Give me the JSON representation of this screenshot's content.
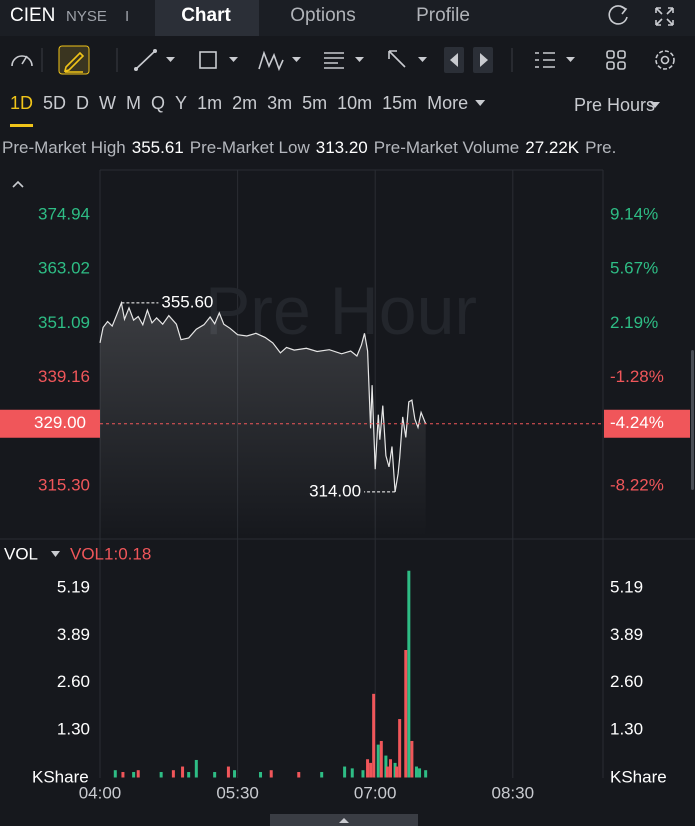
{
  "header": {
    "ticker": "CIEN",
    "exchange": "NYSE",
    "separator": "I",
    "tabs": [
      "Chart",
      "Options",
      "Profile"
    ],
    "selected_tab": 0
  },
  "periods": {
    "items": [
      "1D",
      "5D",
      "D",
      "W",
      "M",
      "Q",
      "Y",
      "1m",
      "2m",
      "3m",
      "5m",
      "10m",
      "15m",
      "More"
    ],
    "selected": 0,
    "session": "Pre Hours"
  },
  "stats": {
    "items": [
      {
        "label": "Pre-Market High",
        "value": "355.61"
      },
      {
        "label": "Pre-Market Low",
        "value": "313.20"
      },
      {
        "label": "Pre-Market Volume",
        "value": "27.22K"
      }
    ],
    "truncated": "Pre."
  },
  "chart_data": [
    {
      "type": "line",
      "watermark": "Pre Hour",
      "color": "#e6e6e6",
      "up_color": "#2ebd85",
      "down_color": "#f0565a",
      "x": [
        "04:00",
        "04:02",
        "04:05",
        "04:08",
        "04:11",
        "04:14",
        "04:16",
        "04:19",
        "04:22",
        "04:25",
        "04:28",
        "04:31",
        "04:34",
        "04:37",
        "04:41",
        "04:45",
        "04:50",
        "04:53",
        "04:58",
        "05:03",
        "05:08",
        "05:12",
        "05:15",
        "05:18",
        "05:21",
        "05:25",
        "05:30",
        "05:36",
        "05:42",
        "05:48",
        "05:53",
        "05:58",
        "06:02",
        "06:07",
        "06:15",
        "06:22",
        "06:30",
        "06:38",
        "06:44",
        "06:48",
        "06:51",
        "06:53",
        "06:55",
        "06:57",
        "06:58",
        "07:00",
        "07:02",
        "07:03",
        "07:05",
        "07:07",
        "07:09",
        "07:11",
        "07:13",
        "07:15",
        "07:16",
        "07:18",
        "07:20",
        "07:22",
        "07:24",
        "07:26",
        "07:28",
        "07:30",
        "07:33"
      ],
      "values": [
        346.8,
        350.2,
        351.5,
        350.5,
        353.0,
        355.6,
        352.0,
        354.5,
        351.8,
        352.6,
        350.8,
        354.0,
        351.2,
        352.3,
        350.9,
        352.8,
        350.9,
        347.5,
        347.9,
        349.8,
        350.8,
        352.5,
        351.0,
        353.4,
        350.9,
        350.0,
        348.6,
        348.3,
        348.9,
        348.0,
        346.8,
        344.6,
        345.8,
        345.2,
        345.6,
        344.9,
        345.3,
        344.4,
        345.0,
        343.9,
        346.3,
        348.9,
        345.0,
        328.0,
        337.5,
        319.0,
        331.0,
        325.5,
        333.0,
        322.0,
        319.5,
        324.0,
        314.0,
        318.0,
        321.5,
        330.5,
        326.0,
        333.8,
        334.2,
        330.0,
        328.2,
        331.5,
        329.0
      ],
      "xlim": [
        "04:00",
        "09:29"
      ],
      "ylim": [
        303.86,
        384.84
      ],
      "yticks": [
        374.94,
        363.02,
        351.09,
        339.16,
        {
          "value": 315.3,
          "label": "315.30"
        }
      ],
      "y2lim": [
        -11.55,
        12.02
      ],
      "y2ticks": [
        {
          "value": 9.14,
          "label": "9.14%"
        },
        {
          "value": 5.67,
          "label": "5.67%"
        },
        {
          "value": 2.19,
          "label": "2.19%"
        },
        {
          "value": -1.28,
          "label": "-1.28%"
        },
        {
          "value": -8.22,
          "label": "-8.22%"
        }
      ],
      "annotations": [
        {
          "x": "04:14",
          "value": 355.6,
          "label": "355.60"
        },
        {
          "x": "07:13",
          "value": 314,
          "label": "314.00"
        }
      ],
      "last": {
        "value": 329,
        "label": "329.00",
        "y2_value": -4.24,
        "y2_label": "-4.24%"
      }
    },
    {
      "type": "bar",
      "label": "VOL",
      "indicator": "VOL1:0.18",
      "unit": "KShare",
      "x": [
        "04:10",
        "04:15",
        "04:22",
        "04:25",
        "04:40",
        "04:48",
        "04:54",
        "04:58",
        "05:03",
        "05:15",
        "05:24",
        "05:28",
        "05:45",
        "05:52",
        "06:10",
        "06:25",
        "06:40",
        "06:45",
        "06:52",
        "06:55",
        "06:57",
        "06:59",
        "07:02",
        "07:04",
        "07:07",
        "07:08",
        "07:10",
        "07:13",
        "07:14",
        "07:16",
        "07:20",
        "07:22",
        "07:24",
        "07:27",
        "07:29",
        "07:33"
      ],
      "values": [
        0.2,
        0.15,
        0.15,
        0.2,
        0.15,
        0.2,
        0.3,
        0.15,
        0.48,
        0.15,
        0.3,
        0.2,
        0.15,
        0.2,
        0.15,
        0.15,
        0.3,
        0.25,
        0.2,
        0.5,
        0.4,
        2.29,
        0.9,
        1.0,
        0.6,
        0.3,
        0.5,
        0.4,
        0.3,
        1.6,
        3.49,
        5.66,
        1.0,
        0.3,
        0.25,
        0.2
      ],
      "colors": [
        "#2ebd85",
        "#f0565a",
        "#2ebd85",
        "#f0565a",
        "#2ebd85",
        "#f0565a",
        "#f0565a",
        "#2ebd85",
        "#2ebd85",
        "#2ebd85",
        "#f0565a",
        "#2ebd85",
        "#2ebd85",
        "#f0565a",
        "#f0565a",
        "#2ebd85",
        "#2ebd85",
        "#2ebd85",
        "#2ebd85",
        "#f0565a",
        "#f0565a",
        "#f0565a",
        "#2ebd85",
        "#f0565a",
        "#2ebd85",
        "#f0565a",
        "#f0565a",
        "#2ebd85",
        "#f0565a",
        "#f0565a",
        "#f0565a",
        "#2ebd85",
        "#f0565a",
        "#2ebd85",
        "#2ebd85",
        "#2ebd85"
      ],
      "xlim": [
        "04:00",
        "09:29"
      ],
      "xticks": [
        "04:00",
        "05:30",
        "07:00",
        "08:30"
      ],
      "ylim": [
        0,
        5.68
      ],
      "yticks": [
        {
          "value": 1.3,
          "label": "1.30"
        },
        {
          "value": 2.6,
          "label": "2.60"
        },
        3.89,
        5.19
      ]
    }
  ]
}
